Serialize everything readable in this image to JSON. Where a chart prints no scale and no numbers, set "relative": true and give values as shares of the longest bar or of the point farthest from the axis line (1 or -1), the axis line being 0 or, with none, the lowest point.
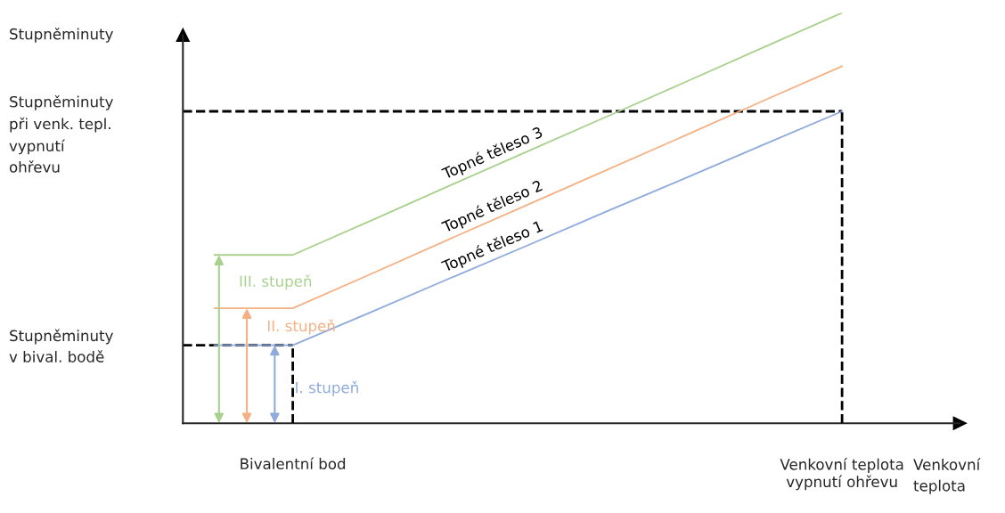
{
  "chart_data": {
    "type": "line",
    "relative": true,
    "xlabel": "Venkovní\nteplota",
    "categories": [
      null,
      "Bivalentní bod",
      null,
      null,
      null,
      null,
      null,
      null,
      "Venkovní teplota\nvypnutí ohřevu"
    ],
    "grid": false,
    "legend": false,
    "marker": "none",
    "series": [
      {
        "name": "Topné těleso 1",
        "color": "#8faadc",
        "values": [
          0.19,
          0.19,
          0.271,
          0.353,
          0.434,
          0.516,
          0.597,
          0.679,
          0.76
        ]
      },
      {
        "name": "Topné těleso 2",
        "color": "#f4b183",
        "values": [
          0.28,
          0.28,
          0.364,
          0.449,
          0.533,
          0.617,
          0.701,
          0.786,
          0.87
        ]
      },
      {
        "name": "Topné těleso 3",
        "color": "#a9d18e",
        "values": [
          0.41,
          0.41,
          0.494,
          0.579,
          0.663,
          0.747,
          0.831,
          0.916,
          1
        ]
      }
    ],
    "ref_lines": [
      {
        "axis": "y",
        "value": 0.76,
        "color": "#000000",
        "line_style": "dashed"
      },
      {
        "axis": "y",
        "value": 0.19,
        "color": "#000000",
        "line_style": "dashed"
      },
      {
        "axis": "x",
        "value": "Venkovní teplota\nvypnutí ohřevu",
        "color": "#000000",
        "line_style": "dashed"
      },
      {
        "axis": "x",
        "value": "Bivalentní bod",
        "color": "#000000",
        "line_style": "dashed"
      }
    ],
    "annotations": [
      "I. stupeň",
      "II. stupeň",
      "III. stupeň",
      "Stupněminuty",
      "Stupněminuty\npři venk. tepl.\nvypnutí\nohřevu",
      "Stupněminuty\nv bival. bodě"
    ]
  }
}
